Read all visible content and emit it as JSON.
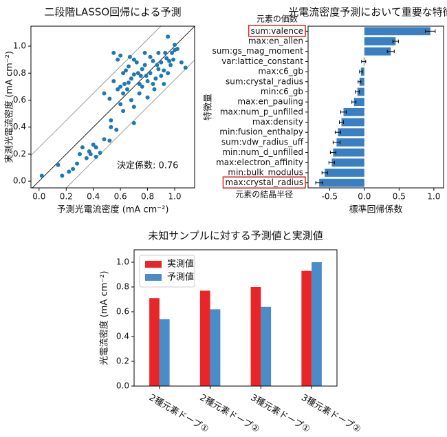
{
  "chart_data": [
    {
      "type": "scatter",
      "title": "二段階LASSO回帰による予測",
      "xlabel": "予測光電流密度 (mA cm⁻²)",
      "ylabel": "実測光電流密度 (mA cm⁻²)",
      "color": "#1f77b4",
      "x": [
        0.02,
        0.14,
        0.17,
        0.22,
        0.25,
        0.28,
        0.3,
        0.32,
        0.35,
        0.37,
        0.4,
        0.42,
        0.45,
        0.42,
        0.38,
        0.48,
        0.52,
        0.53,
        0.53,
        0.57,
        0.6,
        0.62,
        0.52,
        0.48,
        0.55,
        0.58,
        0.6,
        0.55,
        0.6,
        0.63,
        0.65,
        0.68,
        0.7,
        0.66,
        0.68,
        0.7,
        0.72,
        0.74,
        0.75,
        0.76,
        0.78,
        0.8,
        0.82,
        0.84,
        0.85,
        0.86,
        0.88,
        0.9,
        0.92,
        0.93,
        0.94,
        0.96,
        0.97,
        0.98,
        1.0,
        1.02,
        1.05,
        1.08,
        0.95,
        1.0,
        0.88,
        0.82,
        0.78,
        0.74,
        0.7,
        0.62,
        0.64,
        0.67,
        0.76,
        0.8,
        0.84,
        0.9,
        0.92,
        0.58,
        0.62,
        0.7,
        0.73,
        0.79,
        0.87,
        0.99,
        0.95,
        0.66
      ],
      "values": [
        0.04,
        0.12,
        0.04,
        0.07,
        0.09,
        0.13,
        0.2,
        0.25,
        0.17,
        0.22,
        0.27,
        0.18,
        0.21,
        0.25,
        0.2,
        0.31,
        0.3,
        0.45,
        0.4,
        0.38,
        0.57,
        0.52,
        0.61,
        0.65,
        0.95,
        0.9,
        0.93,
        0.74,
        0.7,
        0.72,
        0.68,
        0.6,
        0.55,
        0.85,
        0.76,
        0.79,
        0.88,
        0.72,
        0.78,
        0.83,
        0.86,
        0.74,
        0.8,
        0.89,
        0.68,
        0.76,
        0.83,
        0.88,
        0.82,
        0.95,
        0.91,
        0.89,
        0.86,
        0.95,
        0.97,
        0.98,
        0.88,
        0.84,
        1.07,
        1.01,
        0.95,
        0.92,
        0.95,
        0.65,
        0.43,
        0.65,
        0.82,
        0.92,
        0.7,
        0.62,
        0.72,
        0.78,
        0.72,
        0.68,
        0.8,
        0.9,
        0.8,
        0.78,
        0.86,
        0.9,
        0.8,
        0.73
      ],
      "xlim": [
        -0.06,
        1.147
      ],
      "ylim": [
        -0.05,
        1.148
      ],
      "xticks": [
        {
          "value": 0,
          "label": "0.0"
        },
        0.2,
        0.4,
        0.6,
        0.8,
        {
          "value": 1,
          "label": "1.0"
        }
      ],
      "yticks": [
        {
          "value": 0,
          "label": "0.0"
        },
        0.2,
        0.4,
        0.6,
        0.8,
        {
          "value": 1,
          "label": "1.0"
        }
      ],
      "reference_lines": [
        {
          "slope": 1,
          "intercept": 0,
          "color": "#222222"
        },
        {
          "slope": 1,
          "intercept": 0.25,
          "color": "#999999"
        },
        {
          "slope": 1,
          "intercept": -0.25,
          "color": "#999999"
        }
      ],
      "annotation": {
        "text": "決定係数: 0.76",
        "color": "#d62728"
      }
    },
    {
      "type": "barh",
      "title": "光電流密度予測において重要な特徴量",
      "xlabel": "標準回帰係数",
      "ylabel": "特徴量",
      "color": "#3a7fc1",
      "categories": [
        "sum:valence",
        "max:en_allen",
        "sum:gs_mag_moment",
        "var:lattice_constant",
        "max:c6_gb",
        "sum:crystal_radius",
        "min:c6_gb",
        "max:en_pauling",
        "max:num_p_unfilled",
        "max:density",
        "min:fusion_enthalpy",
        "sum:vdw_radius_uff",
        "min:num_d_unfilled",
        "max:electron_affinity",
        "min:bulk_modulus",
        "max:crystal_radius"
      ],
      "values": [
        0.95,
        0.45,
        0.38,
        -0.01,
        -0.05,
        -0.07,
        -0.1,
        -0.15,
        -0.3,
        -0.33,
        -0.38,
        -0.4,
        -0.45,
        -0.47,
        -0.57,
        -0.65
      ],
      "errors": [
        0.07,
        0.04,
        0.05,
        0.03,
        0.02,
        0.02,
        0.03,
        0.03,
        0.04,
        0.03,
        0.04,
        0.05,
        0.04,
        0.04,
        0.04,
        0.05
      ],
      "xlim": [
        -0.81,
        1.14
      ],
      "xticks": [
        -0.5,
        {
          "value": 0,
          "label": "0.0"
        },
        0.5,
        {
          "value": 1,
          "label": "1.0"
        }
      ],
      "highlight_color": "#d62728",
      "highlights": [
        {
          "index": 0,
          "text": "元素の価数",
          "side": "above"
        },
        {
          "index": 15,
          "text": "元素の結晶半径",
          "side": "below"
        }
      ]
    },
    {
      "type": "bar",
      "title": "未知サンプルに対する予測値と実測値",
      "ylabel": "光電流密度 (mA cm⁻²)",
      "categories": [
        "2種元素ドープ①",
        "2種元素ドープ②",
        "3種元素ドープ①",
        "3種元素ドープ②"
      ],
      "series": [
        {
          "name": "実測値",
          "color": "#e8262a",
          "values": [
            0.71,
            0.77,
            0.8,
            0.93
          ]
        },
        {
          "name": "予測値",
          "color": "#4a8cc7",
          "values": [
            0.54,
            0.62,
            0.64,
            1.0
          ]
        }
      ],
      "ylim": [
        0,
        1.1
      ],
      "yticks": [
        {
          "value": 0,
          "label": "0.0"
        },
        0.2,
        0.4,
        0.6,
        0.8,
        {
          "value": 1,
          "label": "1.0"
        }
      ],
      "legend": "upper left"
    }
  ]
}
